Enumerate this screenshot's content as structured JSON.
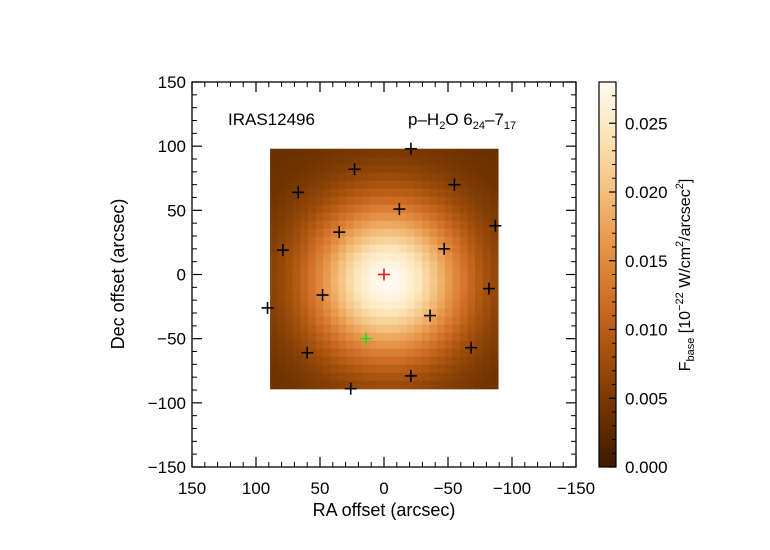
{
  "chart_data": {
    "type": "heatmap",
    "source_label": "IRAS12496",
    "line_label": {
      "base": "p–H",
      "sub1": "2",
      "mid": "O 6",
      "sub2": "24",
      "dash": "–7",
      "sub3": "17"
    },
    "xlabel": "RA offset (arcsec)",
    "ylabel": "Dec offset (arcsec)",
    "xlim": [
      150,
      -150
    ],
    "ylim": [
      -150,
      150
    ],
    "xticks": [
      150,
      100,
      50,
      0,
      -50,
      -100,
      -150
    ],
    "yticks": [
      -150,
      -100,
      -50,
      0,
      50,
      100,
      150
    ],
    "xtick_labels": [
      "150",
      "100",
      "50",
      "0",
      "−50",
      "−100",
      "−150"
    ],
    "ytick_labels": [
      "−150",
      "−100",
      "−50",
      "0",
      "50",
      "100",
      "150"
    ],
    "map_extent": {
      "ra": [
        89,
        -89
      ],
      "dec": [
        -89,
        98
      ]
    },
    "map_peak": {
      "ra": -3,
      "dec": -5,
      "value": 0.028
    },
    "map_sigma_arcsec": 43,
    "colorbar": {
      "range": [
        0.0,
        0.028
      ],
      "ticks": [
        0.0,
        0.005,
        0.01,
        0.015,
        0.02,
        0.025
      ],
      "tick_labels": [
        "0.000",
        "0.005",
        "0.010",
        "0.015",
        "0.020",
        "0.025"
      ],
      "label": {
        "f": "F",
        "fsub": "base",
        "a": " [10",
        "exp1": "−22",
        "b": " W/cm",
        "exp2": "2",
        "c": "/arcsec",
        "exp3": "2",
        "d": "]"
      },
      "colormap": [
        "#3d1a00",
        "#6e3300",
        "#a24f0c",
        "#cf6d24",
        "#e69446",
        "#f4bf7c",
        "#fce4b6",
        "#fffaf0"
      ]
    },
    "markers": [
      {
        "ra": 0,
        "dec": 0,
        "color": "#e31a1c"
      },
      {
        "ra": 14,
        "dec": -50,
        "color": "#22dd22"
      },
      {
        "ra": -21,
        "dec": 98,
        "color": "#000000"
      },
      {
        "ra": 23,
        "dec": 82,
        "color": "#000000"
      },
      {
        "ra": 67,
        "dec": 64,
        "color": "#000000"
      },
      {
        "ra": -55,
        "dec": 70,
        "color": "#000000"
      },
      {
        "ra": -12,
        "dec": 51,
        "color": "#000000"
      },
      {
        "ra": -87,
        "dec": 38,
        "color": "#000000"
      },
      {
        "ra": 35,
        "dec": 33,
        "color": "#000000"
      },
      {
        "ra": 79,
        "dec": 19,
        "color": "#000000"
      },
      {
        "ra": -47,
        "dec": 20,
        "color": "#000000"
      },
      {
        "ra": -82,
        "dec": -11,
        "color": "#000000"
      },
      {
        "ra": 48,
        "dec": -16,
        "color": "#000000"
      },
      {
        "ra": 91,
        "dec": -26,
        "color": "#000000"
      },
      {
        "ra": -36,
        "dec": -32,
        "color": "#000000"
      },
      {
        "ra": 60,
        "dec": -61,
        "color": "#000000"
      },
      {
        "ra": -68,
        "dec": -57,
        "color": "#000000"
      },
      {
        "ra": -21,
        "dec": -79,
        "color": "#000000"
      },
      {
        "ra": 26,
        "dec": -89,
        "color": "#000000"
      }
    ]
  }
}
